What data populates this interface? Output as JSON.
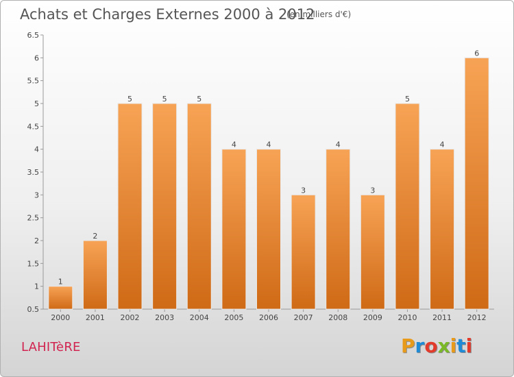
{
  "header": {
    "title": "Achats et Charges Externes 2000 à 2012",
    "subtitle": "(en milliers d'€)"
  },
  "footer": {
    "commune": "LAHITèRE",
    "brand": {
      "letters": [
        "P",
        "r",
        "o",
        "x",
        "i",
        "t",
        "i"
      ],
      "colors": [
        "#e89a1a",
        "#1f8ad6",
        "#e23b2c",
        "#7ab828",
        "#e89a1a",
        "#1f8ad6",
        "#e23b2c"
      ]
    }
  },
  "chart_data": {
    "type": "bar",
    "title": "Achats et Charges Externes 2000 à 2012",
    "subtitle": "(en milliers d'€)",
    "categories": [
      "2000",
      "2001",
      "2002",
      "2003",
      "2004",
      "2005",
      "2006",
      "2007",
      "2008",
      "2009",
      "2010",
      "2011",
      "2012"
    ],
    "values": [
      1,
      2,
      5,
      5,
      5,
      4,
      4,
      3,
      4,
      3,
      5,
      4,
      6
    ],
    "ylim": [
      0.5,
      6.5
    ],
    "yticks": [
      "0.5",
      "1",
      "1.5",
      "2",
      "2.5",
      "3",
      "3.5",
      "4",
      "4.5",
      "5",
      "5.5",
      "6",
      "6.5"
    ],
    "xlabel": "",
    "ylabel": "",
    "bar_color_top": "#f7a355",
    "bar_color_bottom": "#cf6a16",
    "grid": false,
    "legend": "none"
  }
}
